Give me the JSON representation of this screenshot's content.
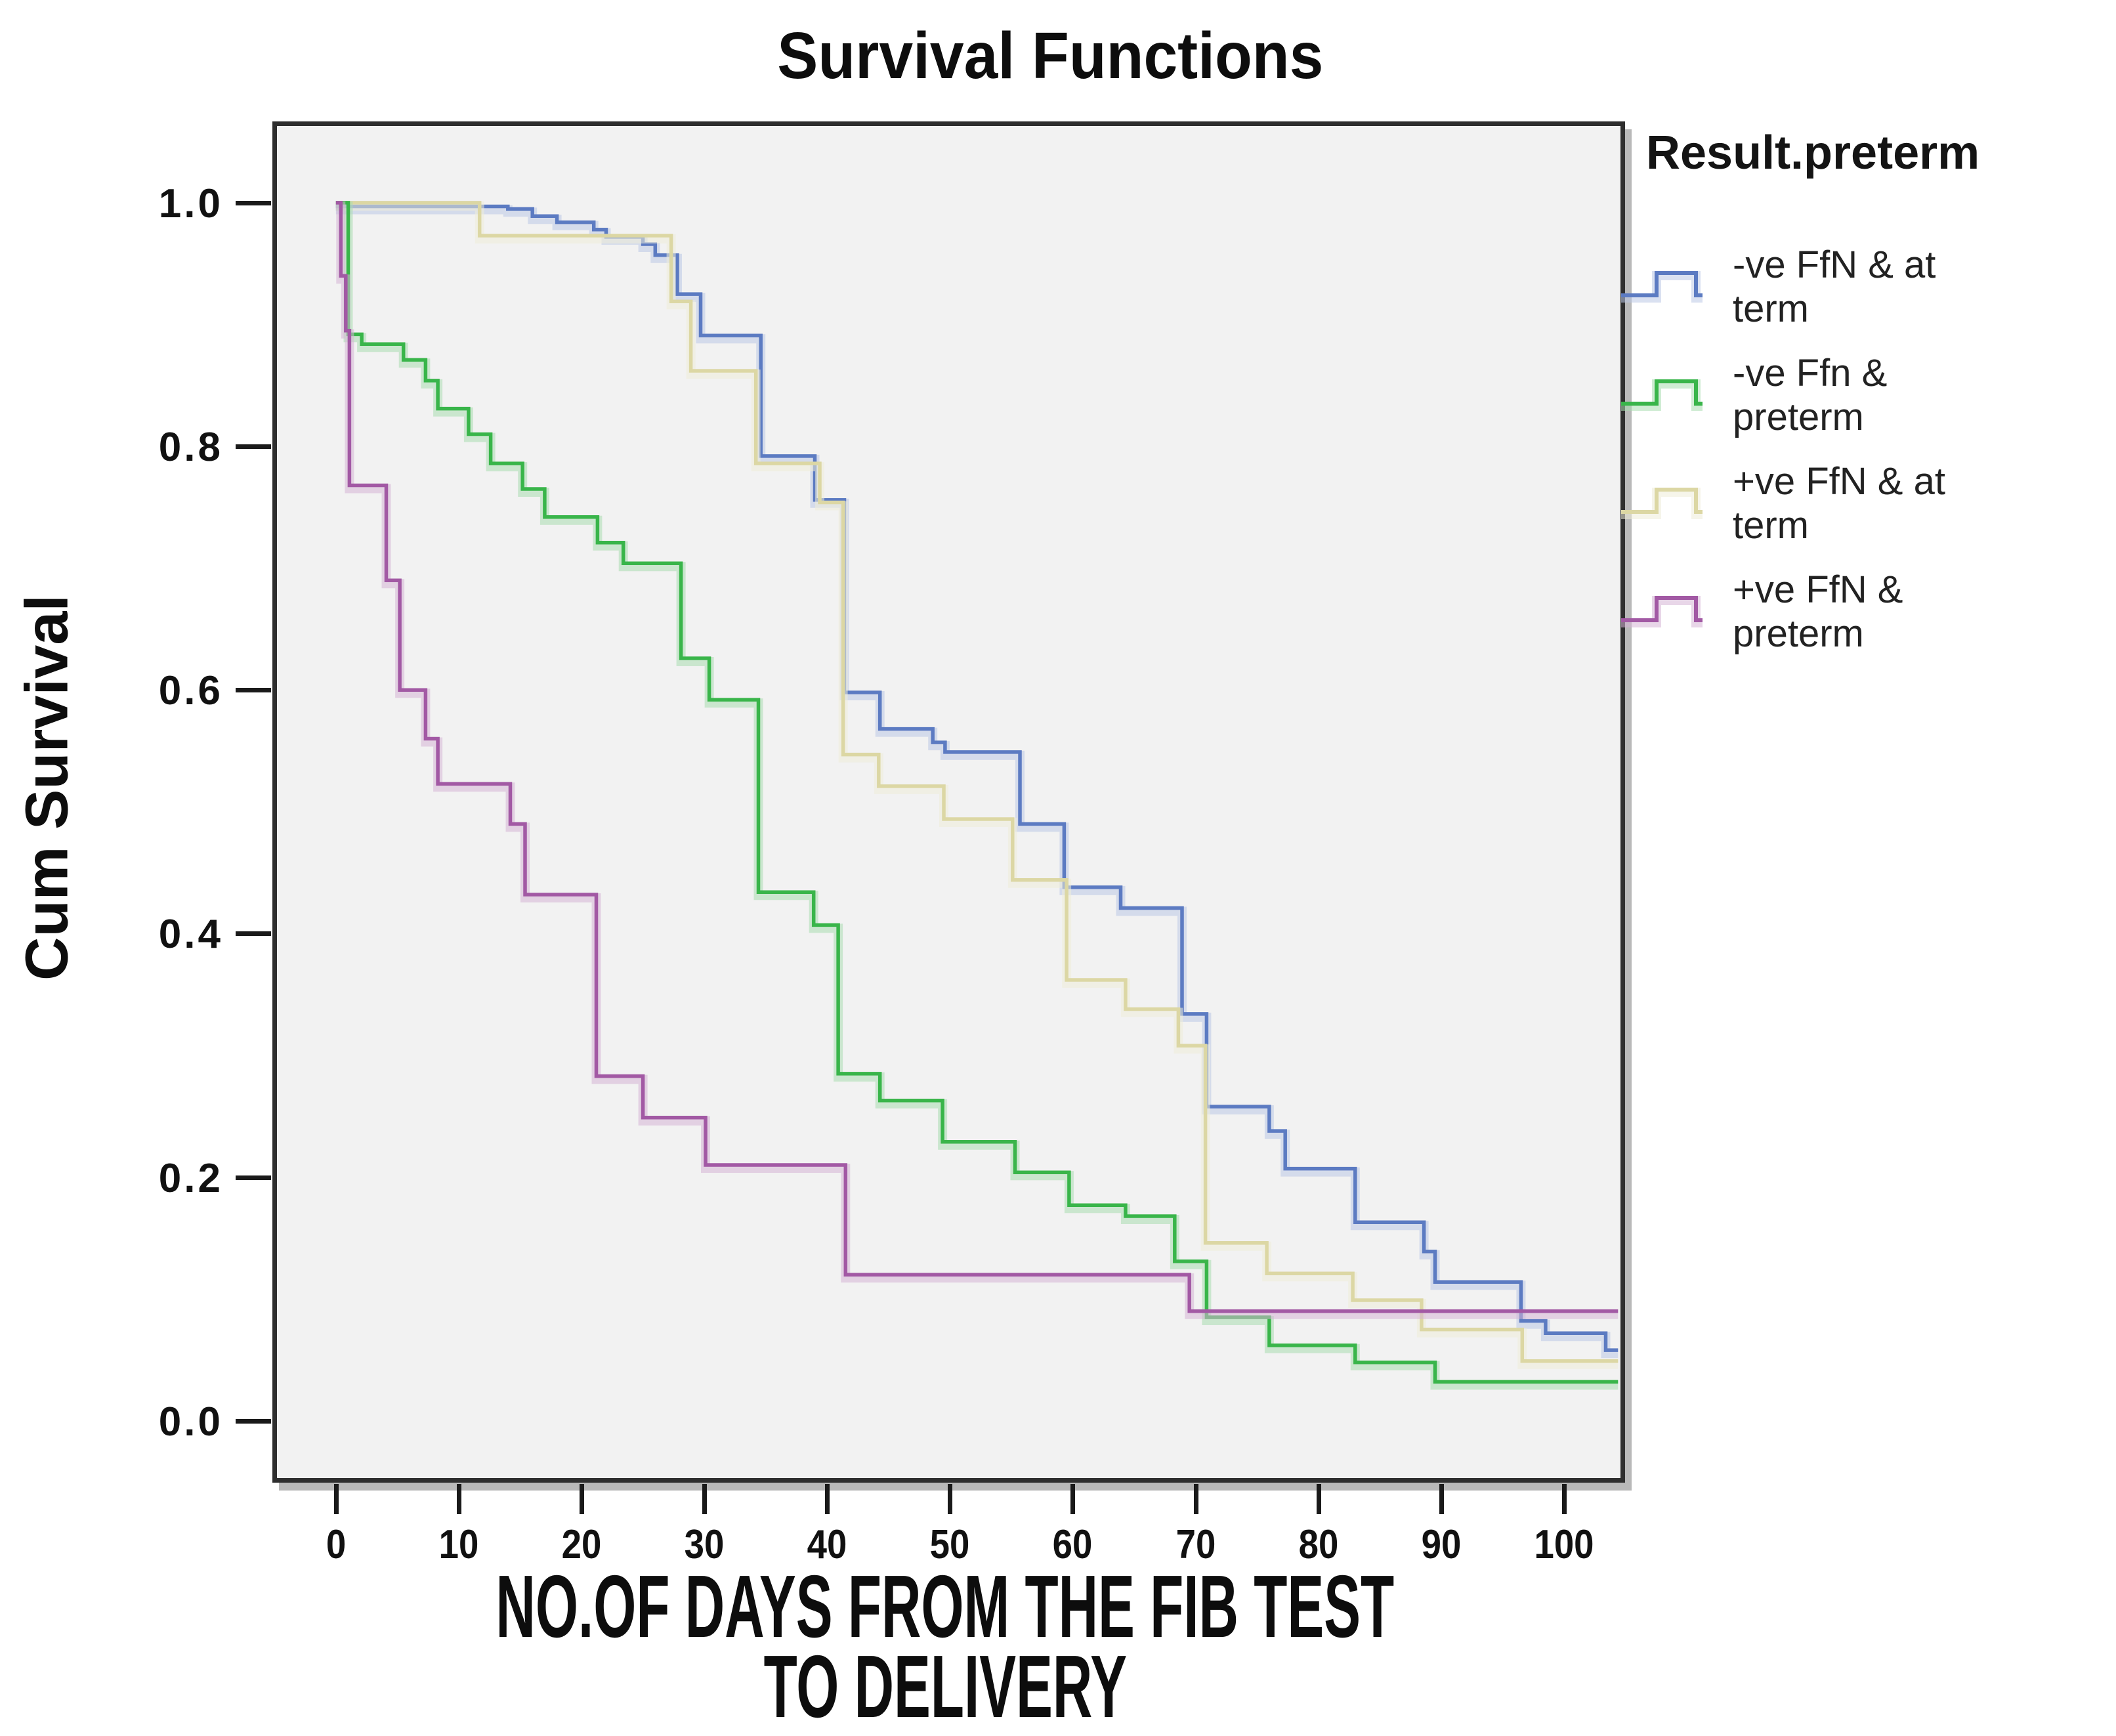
{
  "chart_data": {
    "type": "line",
    "subtype": "kaplan-meier-step-survival",
    "title": "Survival Functions",
    "ylabel": "Cum Survival",
    "xlabel": "NO.OF DAYS FROM THE FIB TEST TO DELIVERY",
    "xlabel_lines": [
      "NO.OF DAYS FROM THE FIB TEST",
      "TO DELIVERY"
    ],
    "legend_title": "Result.preterm",
    "legend_position": "right",
    "grid": false,
    "plot_bg": "#f2f2f2",
    "frame_color": "#2e2e2e",
    "shadow_color": "#b9b9b9",
    "xlim": [
      -4.8,
      104.6
    ],
    "ylim": [
      -0.047,
      1.063
    ],
    "x_end": 104.4,
    "xticks": [
      0,
      10,
      20,
      30,
      40,
      50,
      60,
      70,
      80,
      90,
      100
    ],
    "xtick_labels": [
      "0",
      "10",
      "20",
      "30",
      "40",
      "50",
      "60",
      "70",
      "80",
      "90",
      "100"
    ],
    "yticks": [
      1.0,
      0.8,
      0.6,
      0.4,
      0.2,
      0.0
    ],
    "ytick_labels": [
      "1.0",
      "0.8",
      "0.6",
      "0.4",
      "0.2",
      "0.0"
    ],
    "draw_order": [
      0,
      2,
      1,
      3
    ],
    "series": [
      {
        "name": "-ve FfN & at term",
        "label_lines": [
          "-ve FfN & at",
          "term"
        ],
        "color": "#5c7bc2",
        "halo": "#bcc8e6",
        "points": [
          [
            0,
            0.997
          ],
          [
            14,
            0.995
          ],
          [
            16,
            0.989
          ],
          [
            18,
            0.984
          ],
          [
            21,
            0.978
          ],
          [
            22,
            0.972
          ],
          [
            25,
            0.966
          ],
          [
            26,
            0.957
          ],
          [
            27.8,
            0.925
          ],
          [
            29.7,
            0.891
          ],
          [
            34.6,
            0.792
          ],
          [
            39,
            0.756
          ],
          [
            41.4,
            0.598
          ],
          [
            44.3,
            0.568
          ],
          [
            48.6,
            0.557
          ],
          [
            49.6,
            0.549
          ],
          [
            55.7,
            0.49
          ],
          [
            59.3,
            0.438
          ],
          [
            63.9,
            0.421
          ],
          [
            68.9,
            0.334
          ],
          [
            70.9,
            0.258
          ],
          [
            76,
            0.238
          ],
          [
            77.3,
            0.207
          ],
          [
            83,
            0.163
          ],
          [
            88.6,
            0.139
          ],
          [
            89.5,
            0.114
          ],
          [
            96.5,
            0.082
          ],
          [
            98.5,
            0.072
          ],
          [
            103.4,
            0.058
          ]
        ]
      },
      {
        "name": "-ve Ffn & preterm",
        "label_lines": [
          "-ve Ffn &",
          "preterm"
        ],
        "color": "#39b54a",
        "halo": "#a9ddb0",
        "points": [
          [
            0,
            1.0
          ],
          [
            1,
            0.892
          ],
          [
            2.1,
            0.884
          ],
          [
            5.5,
            0.871
          ],
          [
            7.3,
            0.854
          ],
          [
            8.3,
            0.831
          ],
          [
            10.8,
            0.81
          ],
          [
            12.6,
            0.786
          ],
          [
            15.2,
            0.765
          ],
          [
            17,
            0.742
          ],
          [
            21.3,
            0.721
          ],
          [
            23.4,
            0.704
          ],
          [
            28.1,
            0.626
          ],
          [
            30.4,
            0.592
          ],
          [
            34.4,
            0.434
          ],
          [
            38.9,
            0.407
          ],
          [
            40.9,
            0.285
          ],
          [
            44.3,
            0.263
          ],
          [
            49.4,
            0.229
          ],
          [
            55.3,
            0.204
          ],
          [
            59.7,
            0.177
          ],
          [
            64.3,
            0.168
          ],
          [
            68.3,
            0.131
          ],
          [
            70.9,
            0.085
          ],
          [
            76,
            0.062
          ],
          [
            83,
            0.048
          ],
          [
            89.5,
            0.032
          ]
        ]
      },
      {
        "name": "+ve FfN & at term",
        "label_lines": [
          "+ve FfN & at",
          "term"
        ],
        "color": "#dcd7a4",
        "halo": "#efecd9",
        "points": [
          [
            0,
            1.0
          ],
          [
            11.7,
            0.973
          ],
          [
            27.3,
            0.919
          ],
          [
            28.9,
            0.862
          ],
          [
            34.2,
            0.786
          ],
          [
            39.4,
            0.754
          ],
          [
            41.3,
            0.547
          ],
          [
            44.2,
            0.521
          ],
          [
            49.5,
            0.494
          ],
          [
            55.1,
            0.444
          ],
          [
            59.5,
            0.362
          ],
          [
            64.3,
            0.338
          ],
          [
            68.6,
            0.308
          ],
          [
            70.8,
            0.146
          ],
          [
            75.8,
            0.121
          ],
          [
            82.8,
            0.099
          ],
          [
            88.4,
            0.075
          ],
          [
            96.6,
            0.049
          ]
        ]
      },
      {
        "name": "+ve FfN & preterm",
        "label_lines": [
          "+ve FfN &",
          "preterm"
        ],
        "color": "#a259a4",
        "halo": "#d5b5d6",
        "points": [
          [
            0,
            1.0
          ],
          [
            0.4,
            0.94
          ],
          [
            0.8,
            0.895
          ],
          [
            1.1,
            0.768
          ],
          [
            4.1,
            0.69
          ],
          [
            5.2,
            0.6
          ],
          [
            7.3,
            0.56
          ],
          [
            8.3,
            0.523
          ],
          [
            14.2,
            0.49
          ],
          [
            15.4,
            0.432
          ],
          [
            21.2,
            0.283
          ],
          [
            25,
            0.249
          ],
          [
            30.1,
            0.21
          ],
          [
            41.5,
            0.12
          ],
          [
            69.5,
            0.09
          ]
        ]
      }
    ]
  }
}
